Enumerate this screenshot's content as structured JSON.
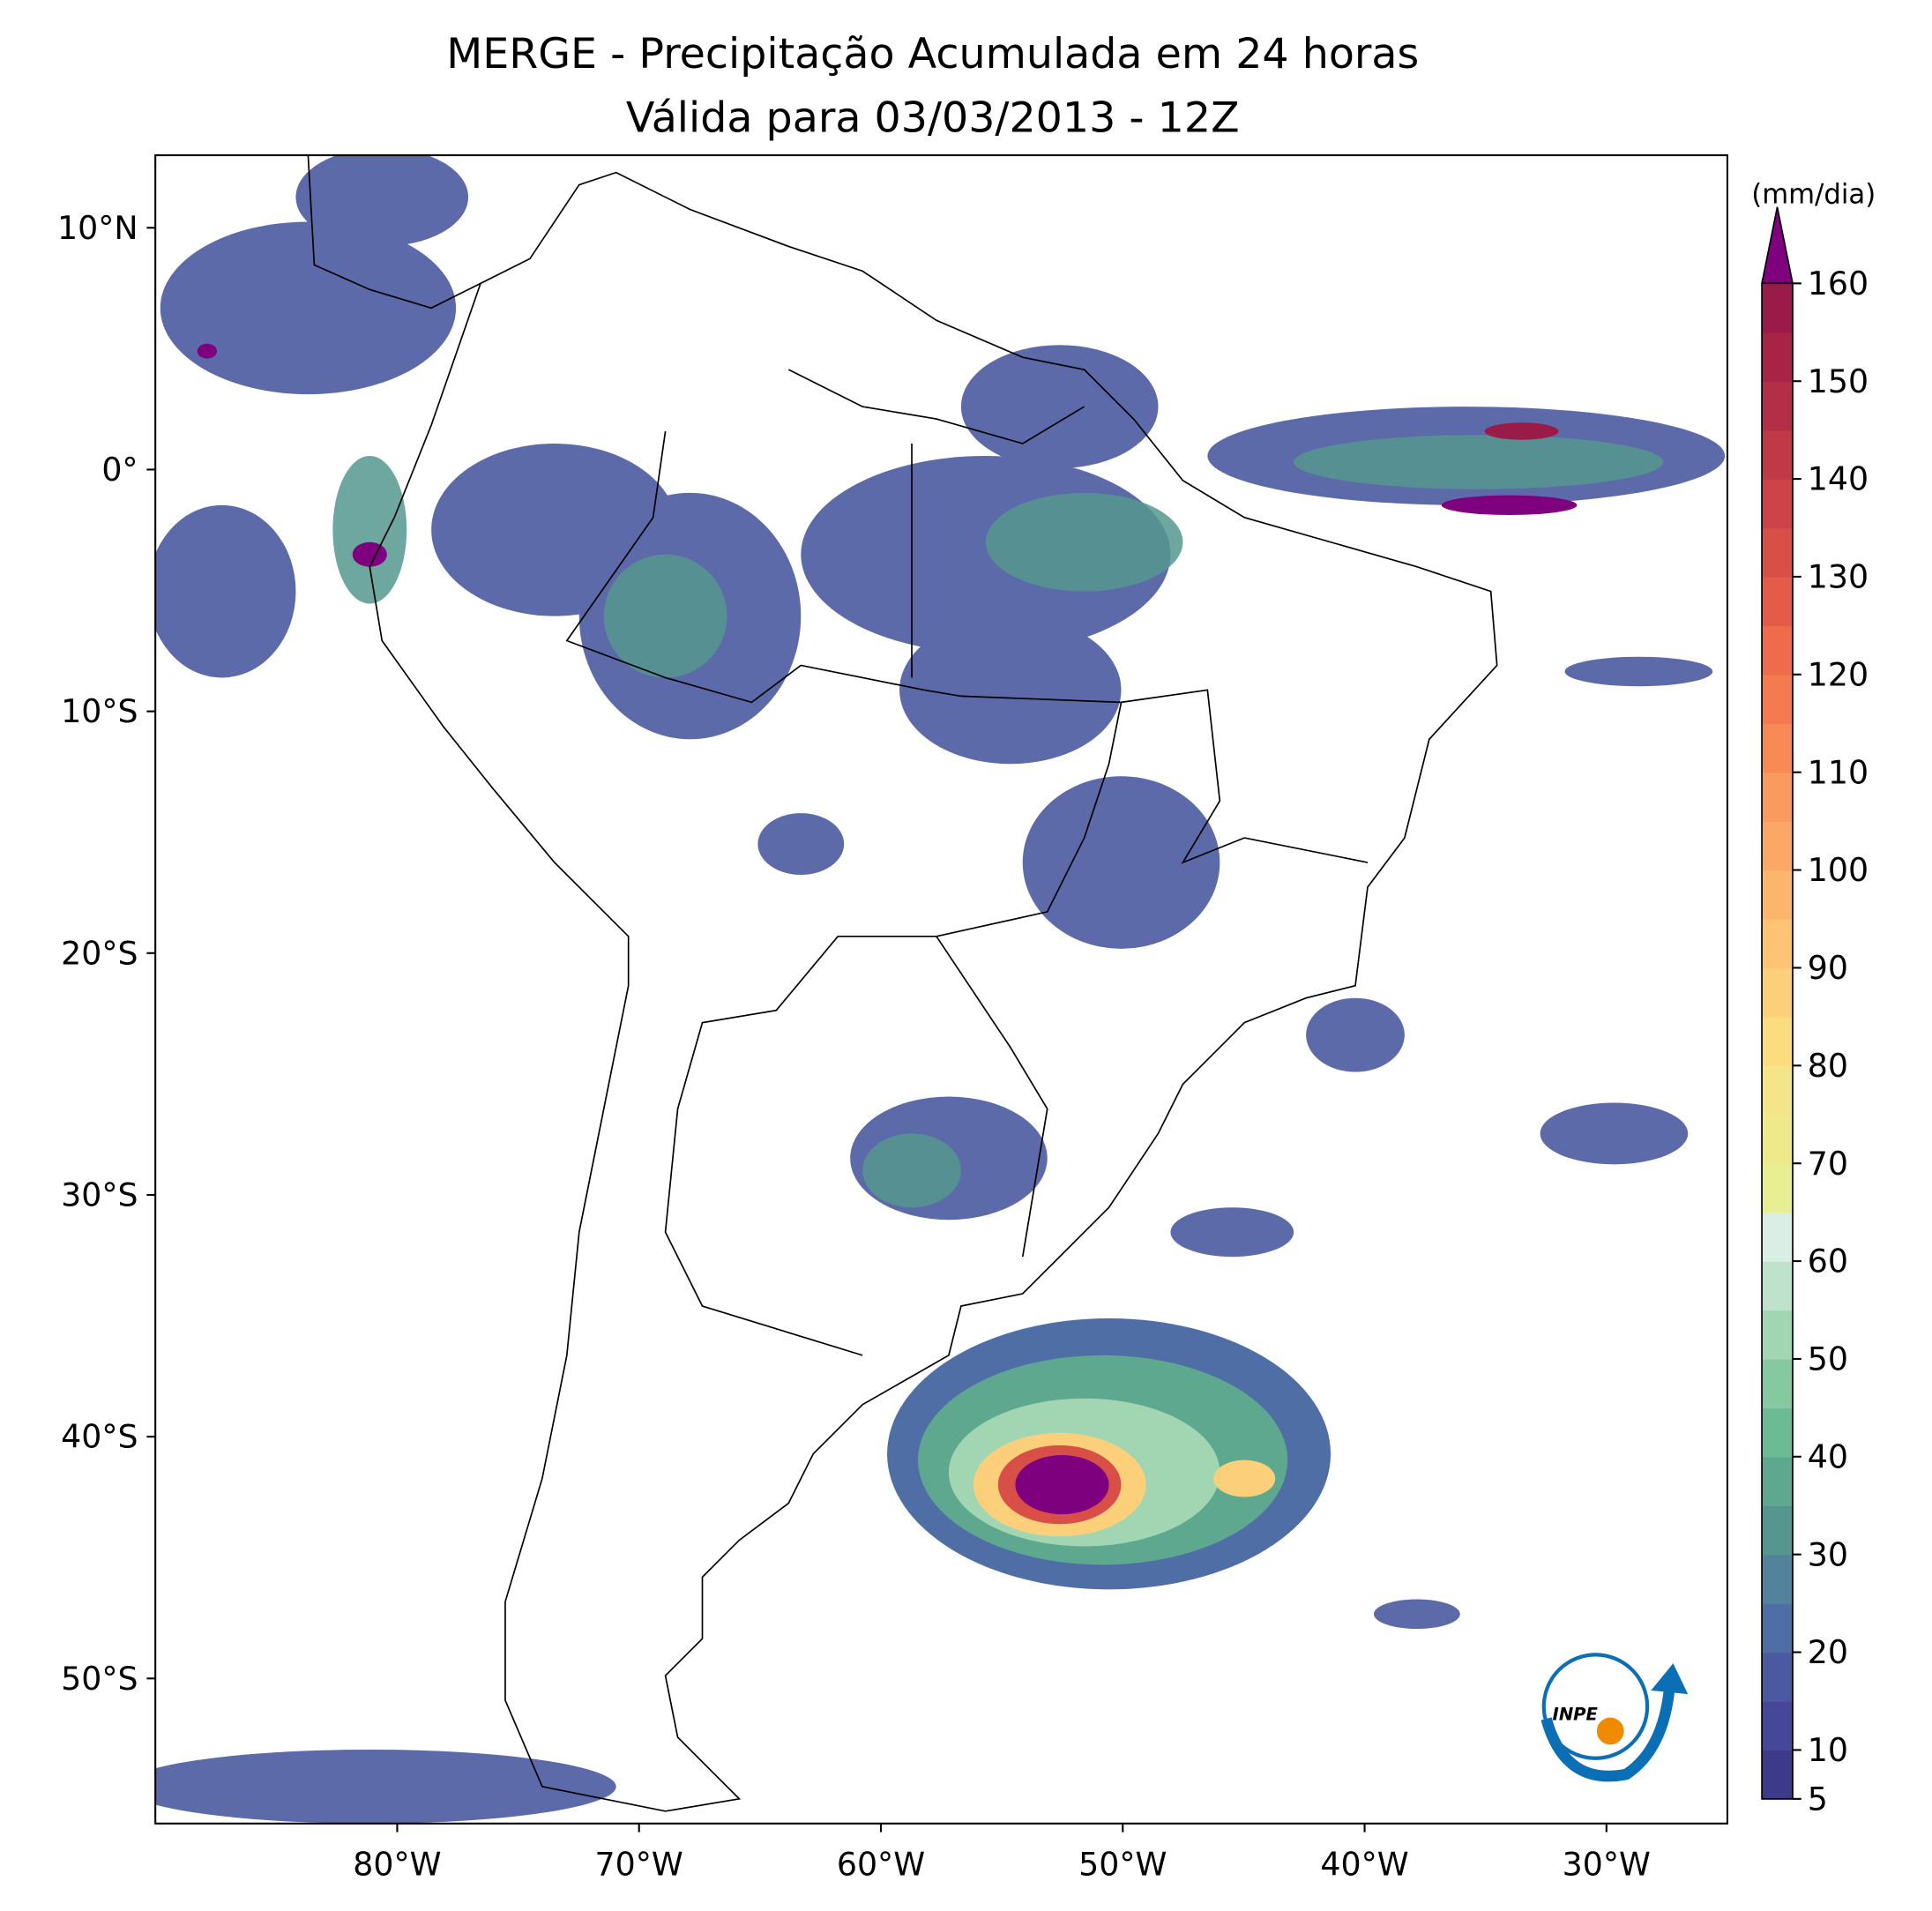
{
  "chart_data": {
    "type": "map",
    "title": "MERGE - Precipitação Acumulada em 24 horas",
    "subtitle": "Válida para 03/03/2013 - 12Z",
    "xlim": [
      -90,
      -25
    ],
    "xticks": [
      {
        "value": -80,
        "label": "80°W"
      },
      {
        "value": -70,
        "label": "70°W"
      },
      {
        "value": -60,
        "label": "60°W"
      },
      {
        "value": -50,
        "label": "50°W"
      },
      {
        "value": -40,
        "label": "40°W"
      },
      {
        "value": -30,
        "label": "30°W"
      }
    ],
    "ylim": [
      -56,
      13
    ],
    "yticks": [
      {
        "value": 10,
        "label": "10°N"
      },
      {
        "value": 0,
        "label": "0°"
      },
      {
        "value": -10,
        "label": "10°S"
      },
      {
        "value": -20,
        "label": "20°S"
      },
      {
        "value": -30,
        "label": "30°S"
      },
      {
        "value": -40,
        "label": "40°S"
      },
      {
        "value": -50,
        "label": "50°S"
      }
    ],
    "colorbar": {
      "label": "(mm/dia)",
      "lim": [
        5,
        160
      ],
      "ticks": [
        5,
        10,
        20,
        30,
        40,
        50,
        60,
        70,
        80,
        90,
        100,
        110,
        120,
        130,
        140,
        150,
        160
      ],
      "levels": [
        5,
        10,
        15,
        20,
        25,
        30,
        35,
        40,
        45,
        50,
        55,
        60,
        65,
        70,
        75,
        80,
        85,
        90,
        95,
        100,
        105,
        110,
        115,
        120,
        125,
        130,
        135,
        140,
        145,
        150,
        155,
        160
      ],
      "colors": [
        "#3e3a8a",
        "#47479a",
        "#4b5aa0",
        "#4f6ea6",
        "#52829c",
        "#55978f",
        "#5ea88f",
        "#6bbb95",
        "#86c9a0",
        "#a2d6b3",
        "#bfe2cd",
        "#dbeee6",
        "#e7ee93",
        "#eee98b",
        "#f5e58a",
        "#fbdc7f",
        "#fcd07b",
        "#fdc475",
        "#fcb56c",
        "#fba866",
        "#f99a5f",
        "#f78a56",
        "#f47a50",
        "#ee6b4b",
        "#e45c48",
        "#d84f47",
        "#cc4447",
        "#c03947",
        "#b32e47",
        "#a72447",
        "#9b1b48"
      ],
      "extend_color": "#7f007f"
    },
    "logo_text": "INPE"
  }
}
